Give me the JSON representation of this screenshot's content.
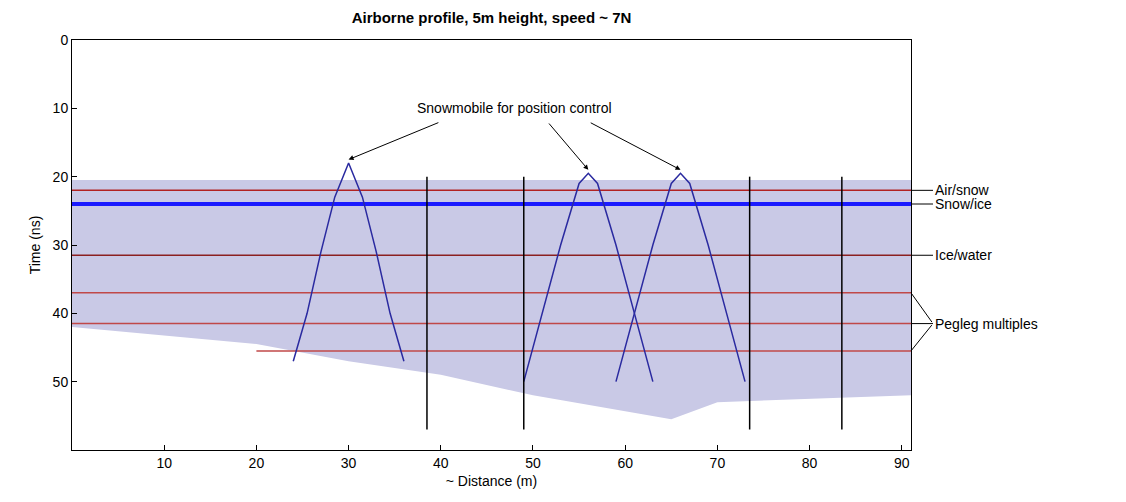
{
  "chart_data": {
    "type": "line",
    "title": "Airborne profile, 5m height, speed ~ 7N",
    "x_label": "~ Distance (m)",
    "y_label": "Time (ns)",
    "xlim": [
      0,
      91
    ],
    "xticks": [
      10,
      20,
      30,
      40,
      50,
      60,
      70,
      80,
      90
    ],
    "ylim": [
      60,
      0
    ],
    "yticks": [
      0,
      10,
      20,
      30,
      40,
      50
    ],
    "grid": false,
    "series": [
      {
        "type": "area",
        "color": "#c9c9e6",
        "x": [
          0,
          91,
          91,
          80,
          70,
          65,
          50,
          40,
          30,
          20,
          0
        ],
        "values": [
          20.5,
          20.5,
          52,
          52.5,
          53,
          55.5,
          52,
          49,
          47,
          44.5,
          42
        ]
      },
      {
        "name": "Pegleg multiples",
        "type": "line",
        "color": "#c04848",
        "line_style": "thin",
        "x": [
          0,
          91,
          null,
          0,
          91,
          null,
          20,
          91
        ],
        "values": [
          37,
          37,
          null,
          41.5,
          41.5,
          null,
          45.5,
          45.5
        ]
      },
      {
        "name": "Ice/water",
        "type": "line",
        "color": "#8b2020",
        "line_style": "thin",
        "x": [
          0,
          91
        ],
        "values": [
          31.5,
          31.5
        ]
      },
      {
        "name": "Snow/ice",
        "type": "line",
        "color": "#1a1aff",
        "line_style": "thick",
        "x": [
          0,
          91
        ],
        "values": [
          24,
          24
        ]
      },
      {
        "name": "Air/snow",
        "type": "line",
        "color": "#b22222",
        "line_style": "thin",
        "x": [
          0,
          91
        ],
        "values": [
          22,
          22
        ]
      },
      {
        "type": "line",
        "color": "#2a2aa0",
        "line_style": "thin",
        "x": [
          24,
          25.5,
          27,
          28.5,
          30,
          31.5,
          33,
          34.5,
          36,
          null,
          49,
          51,
          53,
          55,
          56,
          57,
          59,
          61,
          63,
          null,
          59,
          61,
          63,
          65,
          66,
          67,
          69,
          71,
          73
        ],
        "values": [
          47,
          40,
          31,
          23,
          18,
          23,
          31,
          40,
          47,
          null,
          50,
          40,
          30,
          21,
          19.5,
          21,
          30,
          40,
          50,
          null,
          50,
          40,
          30,
          21,
          19.5,
          21,
          30,
          40,
          50
        ]
      },
      {
        "type": "line",
        "color": "#000000",
        "line_style": "thin",
        "x": [
          38.5,
          38.5,
          null,
          49,
          49,
          null,
          73.5,
          73.5,
          null,
          83.5,
          83.5
        ],
        "values": [
          20,
          57,
          null,
          20,
          57,
          null,
          20,
          57,
          null,
          20,
          57
        ]
      }
    ],
    "annotations": [
      {
        "text": "Snowmobile for position control",
        "x": 48,
        "y": 10,
        "targets": [
          [
            30,
            17.5
          ],
          [
            56,
            19
          ],
          [
            66,
            19
          ]
        ]
      }
    ]
  }
}
